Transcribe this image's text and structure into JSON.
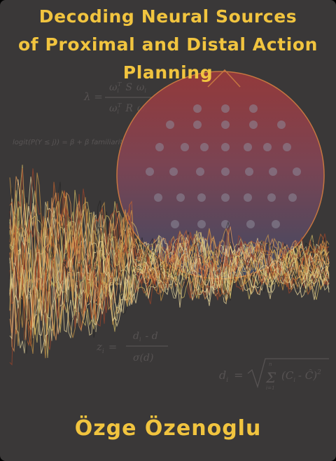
{
  "cover": {
    "title_lines": [
      "Decoding Neural Sources",
      "of Proximal and Distal Action",
      "Planning"
    ],
    "author": "Özge Özenoglu",
    "colors": {
      "background": "#3a3838",
      "accent": "#f1c43f",
      "head_top": "#a83a3a",
      "head_bottom": "#45506b",
      "outline": "#c67640",
      "trace_palette": [
        "#e0c86a",
        "#d9a24a",
        "#c9652d",
        "#e8d9a0",
        "#f0a35c",
        "#a8452a",
        "#ffe9a8",
        "#222222"
      ]
    },
    "illustration": {
      "head_icon": "eeg-head-topography",
      "electrode_icon": "eeg-electrode-dot",
      "waveform_icon": "eeg-waveforms"
    }
  },
  "formulas": {
    "lambda": {
      "lhs": "λ =",
      "num_a": "ω",
      "num_sub1": "i",
      "num_sup": "T",
      "num_s": "S",
      "num_b": "ω",
      "num_sub2": "i",
      "den_a": "ω",
      "den_sub1": "i",
      "den_sup": "T",
      "den_r": "R",
      "den_b": "ω",
      "den_sub2": "i"
    },
    "logit": "logit(P(Y ≤ j)) = β  + β  familiarity",
    "logit_subs": [
      "0",
      "1"
    ],
    "zscore": {
      "lhs": "z",
      "lhs_sub": "i",
      "eq": "=",
      "num_a": "d",
      "num_sub": "i",
      "num_b": "- d",
      "den": "σ(d)"
    },
    "distance": {
      "lhs": "d",
      "lhs_sub": "i",
      "eq": "=",
      "sum": "Σ",
      "sum_top": "n",
      "sum_bot": "i=1",
      "term": "(C",
      "term_sub": "i",
      "term_rest": "- Ĉ)",
      "sup": "2"
    }
  }
}
